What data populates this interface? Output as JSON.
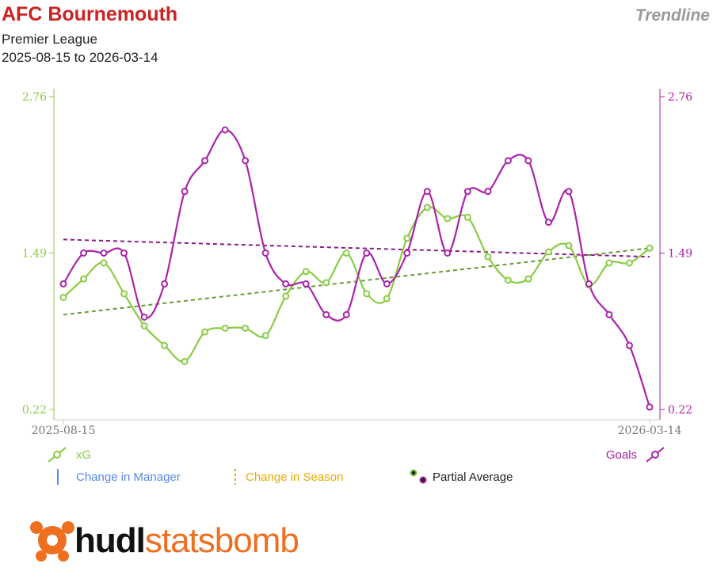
{
  "header": {
    "title": "AFC Bournemouth",
    "subtitle": "Premier League",
    "date_range": "2025-08-15 to 2026-03-14",
    "mode": "Trendline"
  },
  "legend": {
    "xg": "xG",
    "goals": "Goals",
    "manager_change": "Change in Manager",
    "season_change": "Change in Season",
    "partial_average": "Partial Average"
  },
  "brand": {
    "part1": "hudl",
    "part2": "statsbomb"
  },
  "colors": {
    "xg": "#88cc44",
    "goals": "#aa22aa",
    "xg_trend": "#6a9a30",
    "goals_trend": "#8a1a8a",
    "manager": "#5588ee",
    "season": "#f0a800",
    "axis": "#cccccc",
    "title": "#cc2222"
  },
  "chart_data": {
    "type": "line",
    "x_labels": [
      "2025-08-15",
      "2026-03-14"
    ],
    "y_ticks": [
      0.22,
      1.49,
      2.76
    ],
    "ylim": [
      0.22,
      2.76
    ],
    "series": [
      {
        "name": "xG",
        "axis": "left",
        "values": [
          1.13,
          1.28,
          1.41,
          1.16,
          0.9,
          0.74,
          0.61,
          0.85,
          0.88,
          0.88,
          0.82,
          1.14,
          1.34,
          1.25,
          1.49,
          1.16,
          1.12,
          1.61,
          1.86,
          1.77,
          1.78,
          1.46,
          1.27,
          1.28,
          1.5,
          1.55,
          1.23,
          1.41,
          1.41,
          1.53
        ],
        "trend": [
          0.99,
          1.53
        ]
      },
      {
        "name": "Goals",
        "axis": "right",
        "values": [
          1.24,
          1.49,
          1.49,
          1.49,
          0.97,
          1.24,
          1.99,
          2.24,
          2.49,
          2.24,
          1.49,
          1.24,
          1.24,
          0.99,
          0.99,
          1.49,
          1.24,
          1.49,
          1.99,
          1.49,
          1.99,
          1.99,
          2.24,
          2.24,
          1.74,
          1.99,
          1.24,
          0.99,
          0.74,
          0.24
        ],
        "trend": [
          1.6,
          1.46
        ]
      }
    ]
  }
}
